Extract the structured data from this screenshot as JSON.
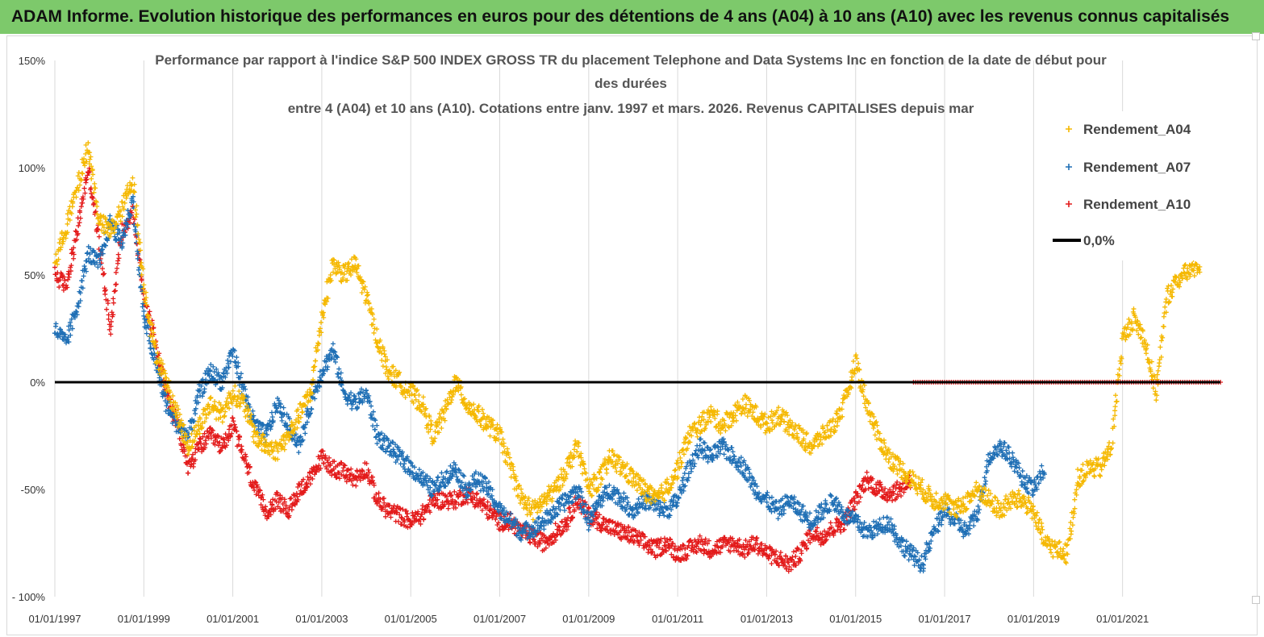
{
  "banner": {
    "title": "ADAM Informe. Evolution historique des performances en euros pour des détentions de 4 ans (A04) à 10 ans (A10) avec les revenus connus capitalisés"
  },
  "colors": {
    "banner": "#7dc96b",
    "a04": "#f5b800",
    "a07": "#1f6fb5",
    "a10": "#e31b1b",
    "zero": "#000000",
    "grid": "#d9d9d9"
  },
  "chart_data": {
    "type": "scatter",
    "title_lines": [
      "Performance par rapport à l'indice S&P 500 INDEX GROSS TR  du placement Telephone and Data Systems Inc en fonction de la date de début pour",
      "des durées",
      "entre 4 (A04) et 10 ans (A10). Cotations entre janv. 1997 et mars. 2026. Revenus CAPITALISES depuis mar"
    ],
    "x_range": [
      1997.0,
      2023.2
    ],
    "x_ticks": [
      {
        "value": 1997,
        "label": "01/01/1997"
      },
      {
        "value": 1999,
        "label": "01/01/1999"
      },
      {
        "value": 2001,
        "label": "01/01/2001"
      },
      {
        "value": 2003,
        "label": "01/01/2003"
      },
      {
        "value": 2005,
        "label": "01/01/2005"
      },
      {
        "value": 2007,
        "label": "01/01/2007"
      },
      {
        "value": 2009,
        "label": "01/01/2009"
      },
      {
        "value": 2011,
        "label": "01/01/2011"
      },
      {
        "value": 2013,
        "label": "01/01/2013"
      },
      {
        "value": 2015,
        "label": "01/01/2015"
      },
      {
        "value": 2017,
        "label": "01/01/2017"
      },
      {
        "value": 2019,
        "label": "01/01/2019"
      },
      {
        "value": 2021,
        "label": "01/01/2021"
      }
    ],
    "y_range": [
      -100,
      150
    ],
    "y_ticks": [
      {
        "value": 150,
        "label": "150%"
      },
      {
        "value": 100,
        "label": "100%"
      },
      {
        "value": 50,
        "label": "50%"
      },
      {
        "value": 0,
        "label": "0%"
      },
      {
        "value": -50,
        "label": "-50%"
      },
      {
        "value": -100,
        "label": "- 100%"
      }
    ],
    "reference_line": {
      "value": 0,
      "label": "0,0%"
    },
    "legend": [
      {
        "key": "a04",
        "label": "Rendement_A04"
      },
      {
        "key": "a07",
        "label": "Rendement_A07"
      },
      {
        "key": "a10",
        "label": "Rendement_A10"
      },
      {
        "key": "zero",
        "label": "0,0%"
      }
    ],
    "series": [
      {
        "name": "Rendement_A04",
        "key": "a04",
        "x": [
          1997.0,
          1997.25,
          1997.5,
          1997.75,
          1998.0,
          1998.25,
          1998.5,
          1998.75,
          1999.0,
          1999.25,
          1999.5,
          1999.75,
          2000.0,
          2000.25,
          2000.5,
          2000.75,
          2001.0,
          2001.25,
          2001.5,
          2001.75,
          2002.0,
          2002.25,
          2002.5,
          2002.75,
          2003.0,
          2003.25,
          2003.5,
          2003.75,
          2004.0,
          2004.25,
          2004.5,
          2004.75,
          2005.0,
          2005.25,
          2005.5,
          2005.75,
          2006.0,
          2006.25,
          2006.5,
          2006.75,
          2007.0,
          2007.25,
          2007.5,
          2007.75,
          2008.0,
          2008.25,
          2008.5,
          2008.75,
          2009.0,
          2009.25,
          2009.5,
          2009.75,
          2010.0,
          2010.25,
          2010.5,
          2010.75,
          2011.0,
          2011.25,
          2011.5,
          2011.75,
          2012.0,
          2012.25,
          2012.5,
          2012.75,
          2013.0,
          2013.25,
          2013.5,
          2013.75,
          2014.0,
          2014.25,
          2014.5,
          2014.75,
          2015.0,
          2015.25,
          2015.5,
          2015.75,
          2016.0,
          2016.25,
          2016.5,
          2016.75,
          2017.0,
          2017.25,
          2017.5,
          2017.75,
          2018.0,
          2018.25,
          2018.5,
          2018.75,
          2019.0,
          2019.25,
          2019.5,
          2019.75,
          2020.0,
          2020.25,
          2020.5,
          2020.75,
          2021.0,
          2021.25,
          2021.5,
          2021.75,
          2022.0,
          2022.25,
          2022.5,
          2022.75
        ],
        "y": [
          55,
          72,
          90,
          110,
          75,
          70,
          80,
          95,
          45,
          15,
          0,
          -15,
          -30,
          -20,
          -10,
          -15,
          -5,
          -10,
          -25,
          -30,
          -32,
          -25,
          -15,
          -5,
          30,
          55,
          50,
          55,
          40,
          20,
          5,
          0,
          -5,
          -10,
          -25,
          -15,
          0,
          -10,
          -15,
          -20,
          -25,
          -40,
          -55,
          -60,
          -55,
          -50,
          -40,
          -30,
          -50,
          -45,
          -35,
          -40,
          -45,
          -50,
          -55,
          -50,
          -40,
          -25,
          -20,
          -15,
          -20,
          -15,
          -10,
          -15,
          -20,
          -15,
          -20,
          -25,
          -30,
          -25,
          -20,
          -10,
          10,
          -10,
          -25,
          -35,
          -40,
          -45,
          -50,
          -55,
          -55,
          -60,
          -55,
          -50,
          -55,
          -60,
          -55,
          -55,
          -60,
          -75,
          -78,
          -80,
          -45,
          -40,
          -40,
          -30,
          20,
          30,
          20,
          -5,
          40,
          48,
          52,
          55
        ]
      },
      {
        "name": "Rendement_A07",
        "key": "a07",
        "x": [
          1997.0,
          1997.25,
          1997.5,
          1997.75,
          1998.0,
          1998.25,
          1998.5,
          1998.75,
          1999.0,
          1999.25,
          1999.5,
          1999.75,
          2000.0,
          2000.25,
          2000.5,
          2000.75,
          2001.0,
          2001.25,
          2001.5,
          2001.75,
          2002.0,
          2002.25,
          2002.5,
          2002.75,
          2003.0,
          2003.25,
          2003.5,
          2003.75,
          2004.0,
          2004.25,
          2004.5,
          2004.75,
          2005.0,
          2005.25,
          2005.5,
          2005.75,
          2006.0,
          2006.25,
          2006.5,
          2006.75,
          2007.0,
          2007.25,
          2007.5,
          2007.75,
          2008.0,
          2008.25,
          2008.5,
          2008.75,
          2009.0,
          2009.25,
          2009.5,
          2009.75,
          2010.0,
          2010.25,
          2010.5,
          2010.75,
          2011.0,
          2011.25,
          2011.5,
          2011.75,
          2012.0,
          2012.25,
          2012.5,
          2012.75,
          2013.0,
          2013.25,
          2013.5,
          2013.75,
          2014.0,
          2014.25,
          2014.5,
          2014.75,
          2015.0,
          2015.25,
          2015.5,
          2015.75,
          2016.0,
          2016.25,
          2016.5,
          2016.75,
          2017.0,
          2017.25,
          2017.5,
          2017.75,
          2018.0,
          2018.25,
          2018.5,
          2018.75,
          2019.0,
          2019.25
        ],
        "y": [
          25,
          18,
          35,
          60,
          55,
          75,
          65,
          85,
          30,
          10,
          -10,
          -20,
          -25,
          -5,
          5,
          0,
          15,
          -5,
          -20,
          -25,
          -10,
          -20,
          -30,
          -10,
          5,
          15,
          -5,
          -10,
          -5,
          -25,
          -30,
          -35,
          -40,
          -45,
          -50,
          -45,
          -40,
          -50,
          -45,
          -50,
          -60,
          -65,
          -70,
          -68,
          -65,
          -60,
          -55,
          -50,
          -65,
          -55,
          -50,
          -55,
          -60,
          -55,
          -58,
          -60,
          -55,
          -40,
          -30,
          -35,
          -30,
          -35,
          -40,
          -50,
          -55,
          -60,
          -55,
          -60,
          -65,
          -60,
          -55,
          -62,
          -65,
          -70,
          -68,
          -65,
          -75,
          -80,
          -85,
          -70,
          -60,
          -65,
          -70,
          -60,
          -35,
          -30,
          -35,
          -45,
          -50,
          -40
        ]
      },
      {
        "name": "Rendement_A10",
        "key": "a10",
        "x": [
          1997.0,
          1997.25,
          1997.5,
          1997.75,
          1998.0,
          1998.25,
          1998.5,
          1998.75,
          1999.0,
          1999.25,
          1999.5,
          1999.75,
          2000.0,
          2000.25,
          2000.5,
          2000.75,
          2001.0,
          2001.25,
          2001.5,
          2001.75,
          2002.0,
          2002.25,
          2002.5,
          2002.75,
          2003.0,
          2003.25,
          2003.5,
          2003.75,
          2004.0,
          2004.25,
          2004.5,
          2004.75,
          2005.0,
          2005.25,
          2005.5,
          2005.75,
          2006.0,
          2006.25,
          2006.5,
          2006.75,
          2007.0,
          2007.25,
          2007.5,
          2007.75,
          2008.0,
          2008.25,
          2008.5,
          2008.75,
          2009.0,
          2009.25,
          2009.5,
          2009.75,
          2010.0,
          2010.25,
          2010.5,
          2010.75,
          2011.0,
          2011.25,
          2011.5,
          2011.75,
          2012.0,
          2012.25,
          2012.5,
          2012.75,
          2013.0,
          2013.25,
          2013.5,
          2013.75,
          2014.0,
          2014.25,
          2014.5,
          2014.75,
          2015.0,
          2015.25,
          2015.5,
          2015.75,
          2016.0,
          2016.25
        ],
        "y": [
          50,
          45,
          70,
          100,
          65,
          25,
          70,
          80,
          40,
          20,
          -5,
          -20,
          -40,
          -30,
          -25,
          -30,
          -20,
          -35,
          -50,
          -60,
          -55,
          -60,
          -50,
          -45,
          -35,
          -40,
          -42,
          -45,
          -40,
          -55,
          -60,
          -62,
          -65,
          -62,
          -55,
          -55,
          -55,
          -52,
          -55,
          -60,
          -65,
          -65,
          -70,
          -72,
          -75,
          -70,
          -65,
          -55,
          -62,
          -65,
          -68,
          -70,
          -72,
          -75,
          -78,
          -75,
          -80,
          -78,
          -75,
          -78,
          -76,
          -75,
          -78,
          -75,
          -80,
          -82,
          -85,
          -80,
          -70,
          -72,
          -68,
          -65,
          -55,
          -45,
          -50,
          -52,
          -50,
          -45
        ]
      }
    ],
    "flat_series": {
      "key": "a10",
      "x_range": [
        2016.3,
        2023.2
      ],
      "value": 0
    }
  }
}
